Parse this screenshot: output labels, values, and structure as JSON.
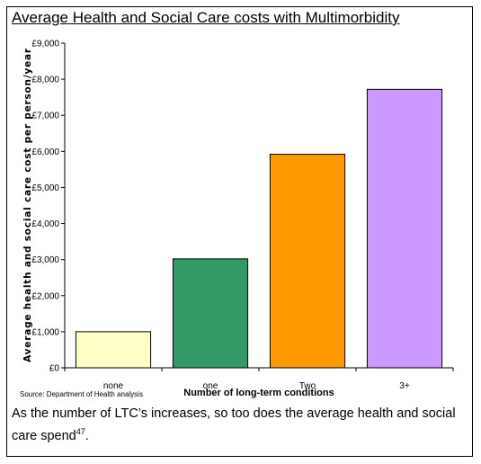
{
  "title": "Average Health and Social Care costs with Multimorbidity",
  "caption": {
    "text": "As the number of LTC’s increases, so too does the average health and social care spend",
    "superscript": "47",
    "end": "."
  },
  "chart_data": {
    "type": "bar",
    "title": "",
    "xlabel": "Number of long-term conditions",
    "ylabel": "Average health and social care cost per person/year",
    "source": "Source: Department of Health analysis",
    "categories": [
      "none",
      "one",
      "Two",
      "3+"
    ],
    "values": [
      1000,
      3020,
      5920,
      7720
    ],
    "colors": [
      "#ffffc8",
      "#339966",
      "#ff9900",
      "#cc99ff"
    ],
    "ylim": [
      0,
      9000
    ],
    "yticks": [
      0,
      1000,
      2000,
      3000,
      4000,
      5000,
      6000,
      7000,
      8000,
      9000
    ],
    "ytick_labels": [
      "£0",
      "£1,000",
      "£2,000",
      "£3,000",
      "£4,000",
      "£5,000",
      "£6,000",
      "£7,000",
      "£8,000",
      "£9,000"
    ],
    "grid": false,
    "legend": "none"
  }
}
